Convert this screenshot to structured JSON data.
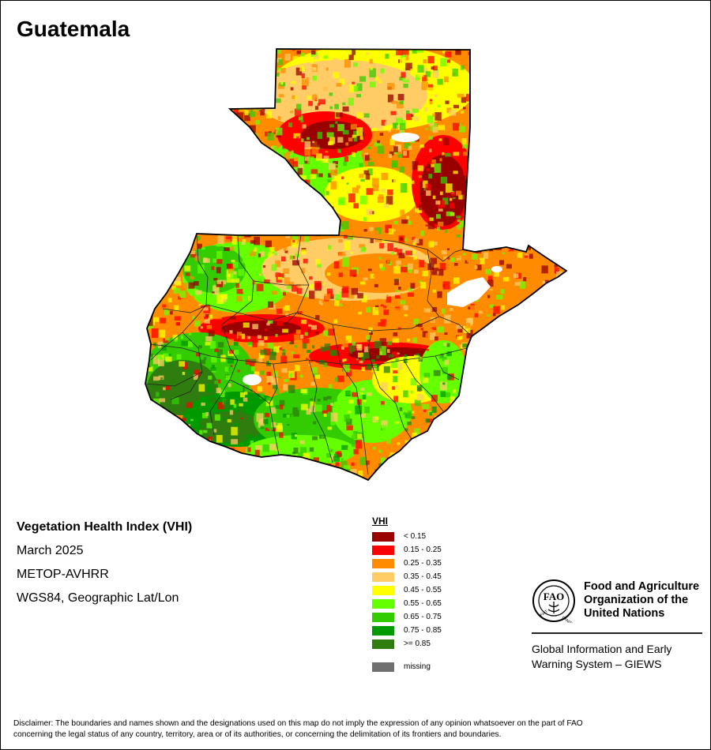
{
  "map": {
    "title": "Guatemala"
  },
  "info": {
    "index_title": "Vegetation Health Index (VHI)",
    "period": "March 2025",
    "sensor": "METOP-AVHRR",
    "projection": "WGS84, Geographic Lat/Lon"
  },
  "legend": {
    "title": "VHI",
    "classes": [
      {
        "label": "< 0.15",
        "color": "#990000"
      },
      {
        "label": "0.15 - 0.25",
        "color": "#ff0000"
      },
      {
        "label": "0.25 - 0.35",
        "color": "#ff8c00"
      },
      {
        "label": "0.35 - 0.45",
        "color": "#ffcc66"
      },
      {
        "label": "0.45 - 0.55",
        "color": "#ffff00"
      },
      {
        "label": "0.55 - 0.65",
        "color": "#66ff00"
      },
      {
        "label": "0.65 - 0.75",
        "color": "#33cc00"
      },
      {
        "label": "0.75 - 0.85",
        "color": "#009900"
      },
      {
        "label": ">= 0.85",
        "color": "#2e7d0e"
      }
    ],
    "missing": {
      "label": "missing",
      "color": "#707070"
    }
  },
  "org": {
    "emblem_icon": "fao-emblem-icon",
    "name_line1": "Food and Agriculture",
    "name_line2": "Organization of the",
    "name_line3": "United Nations",
    "program_line1": "Global Information and Early",
    "program_line2": "Warning System – GIEWS"
  },
  "disclaimer_line1": "Disclaimer: The boundaries and names shown and the designations used on this map do not imply the expression of any opinion whatsoever on the part of FAO",
  "disclaimer_line2": "concerning the legal status of any country, territory, area or of its authorities, or concerning the delimitation of its frontiers and boundaries."
}
